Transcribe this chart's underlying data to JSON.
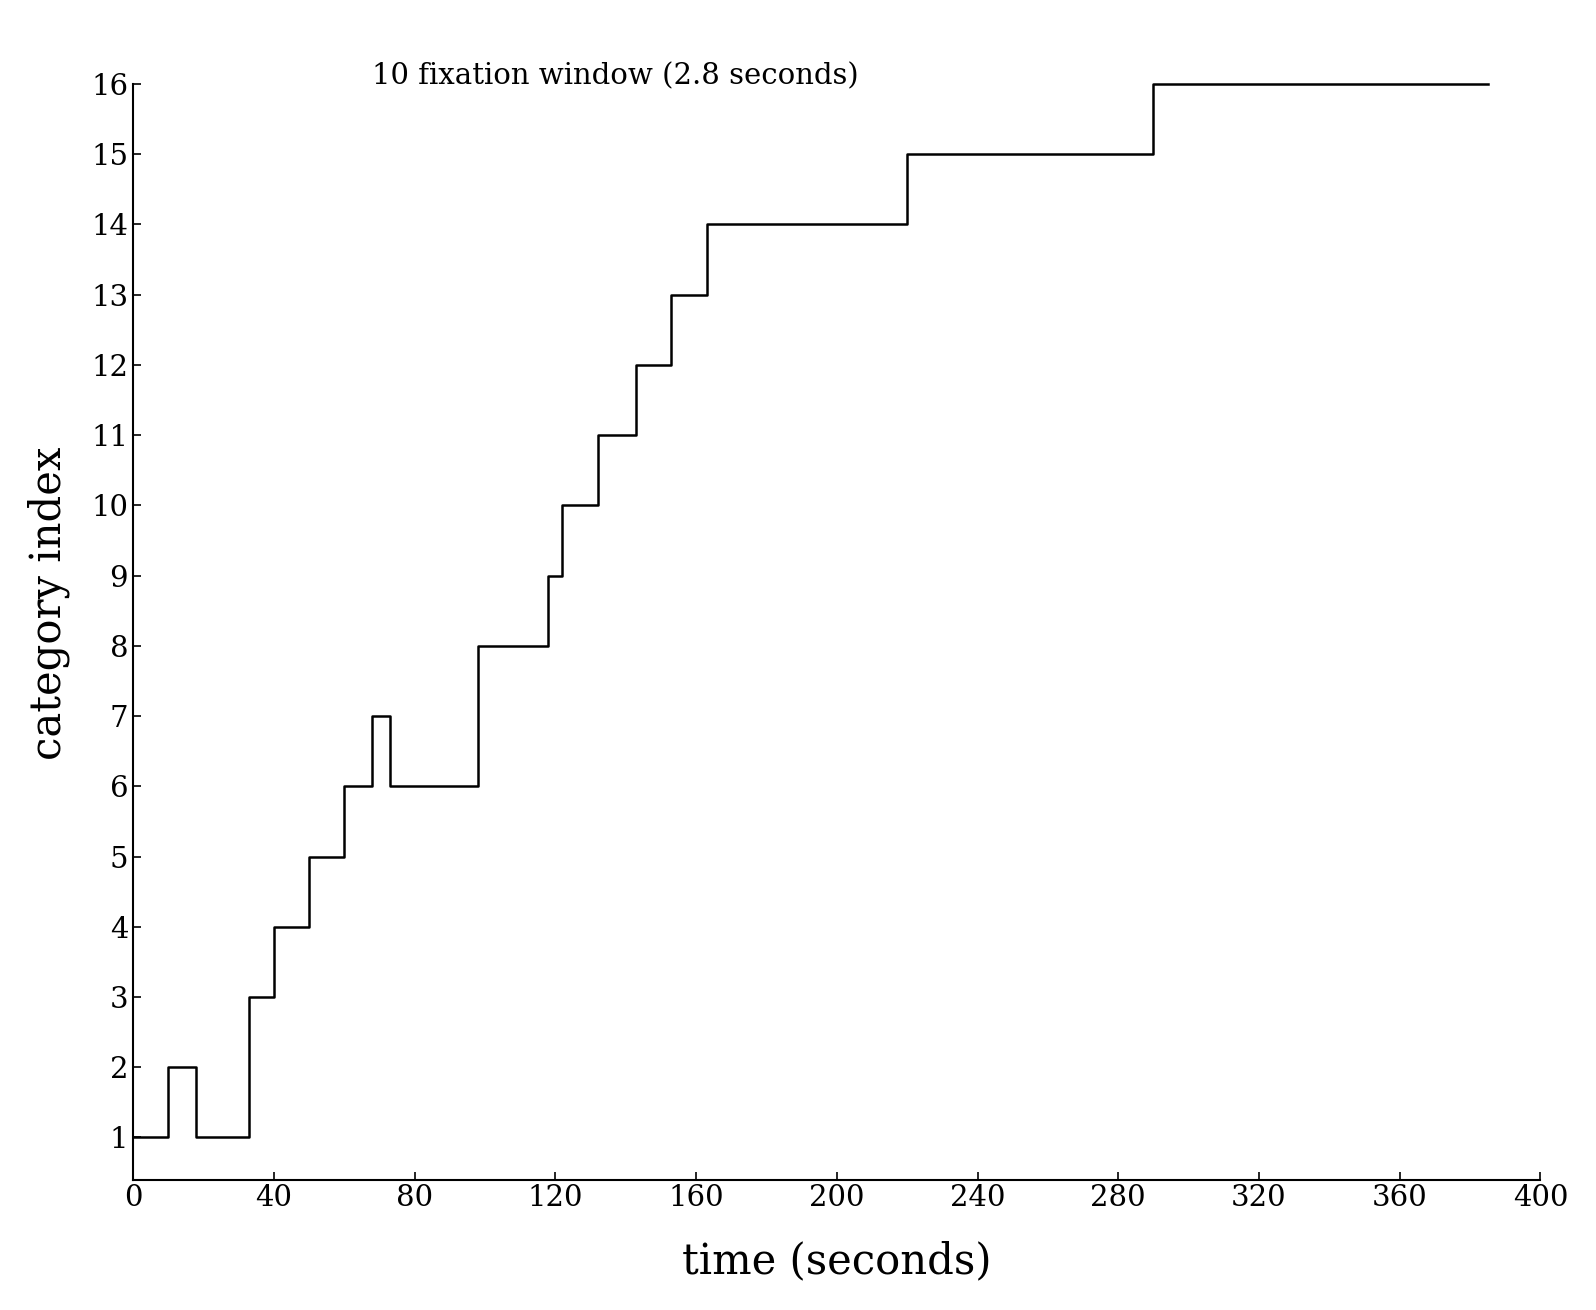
{
  "title": "10 fixation window (2.8 seconds)",
  "xlabel": "time (seconds)",
  "ylabel": "category index",
  "xlim": [
    0,
    400
  ],
  "ylim": [
    0.4,
    16.8
  ],
  "xticks": [
    0,
    40,
    80,
    120,
    160,
    200,
    240,
    280,
    320,
    360,
    400
  ],
  "yticks": [
    1,
    2,
    3,
    4,
    5,
    6,
    7,
    8,
    9,
    10,
    11,
    12,
    13,
    14,
    15,
    16
  ],
  "title_fontsize": 21,
  "axis_label_fontsize": 30,
  "tick_fontsize": 21,
  "line_color": "#000000",
  "line_width": 1.8,
  "step_x": [
    0,
    10,
    18,
    28,
    33,
    40,
    50,
    60,
    68,
    73,
    85,
    98,
    110,
    118,
    122,
    132,
    143,
    153,
    163,
    173,
    183,
    193,
    203,
    220,
    237,
    255,
    272,
    290,
    310,
    330,
    350,
    368,
    385
  ],
  "step_y": [
    1,
    2,
    1,
    1,
    3,
    4,
    5,
    6,
    7,
    6,
    6,
    8,
    8,
    9,
    10,
    11,
    12,
    13,
    14,
    14,
    14,
    14,
    14,
    15,
    15,
    15,
    15,
    16,
    16,
    16,
    16,
    16,
    16
  ]
}
